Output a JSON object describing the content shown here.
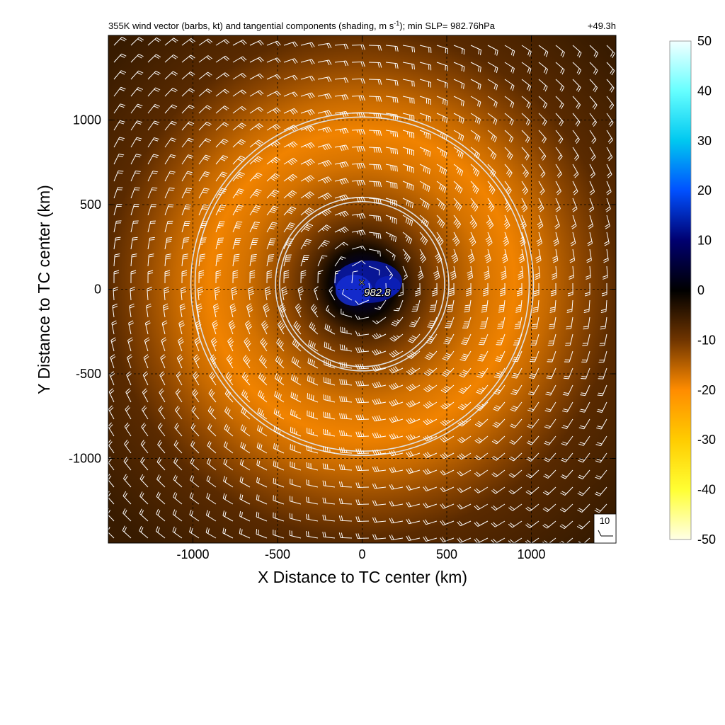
{
  "chart_data": {
    "type": "heatmap",
    "title": "355K wind vector (barbs, kt) and tangential components (shading, m s",
    "title_superscript": "-1",
    "title_suffix": "); min SLP= 982.76hPa",
    "forecast_time": "+49.3h",
    "xlabel": "X Distance to TC center (km)",
    "ylabel": "Y Distance to TC center (km)",
    "xlim": [
      -1500,
      1500
    ],
    "ylim": [
      -1500,
      1500
    ],
    "xticks": [
      -1000,
      -500,
      0,
      500,
      1000
    ],
    "yticks": [
      -1000,
      -500,
      0,
      500,
      1000
    ],
    "xtick_labels": [
      "-1000",
      "-500",
      "0",
      "500",
      "1000"
    ],
    "ytick_labels": [
      "-1000",
      "-500",
      "0",
      "500",
      "1000"
    ],
    "grid": "dashed",
    "center_marker": {
      "symbol": "×",
      "x": 0,
      "y": 30,
      "label": "982.8"
    },
    "range_rings_km": [
      500,
      1000
    ],
    "ring_center": [
      0,
      30
    ],
    "barb_reference": {
      "label": "10",
      "speed_kt": 10
    },
    "colorbar": {
      "ticks": [
        50,
        40,
        30,
        20,
        10,
        0,
        -10,
        -20,
        -30,
        -40,
        -50
      ],
      "tick_labels": [
        "50",
        "40",
        "30",
        "20",
        "10",
        "0",
        "-10",
        "-20",
        "-30",
        "-40",
        "-50"
      ],
      "range": [
        -50,
        50
      ],
      "stops": [
        {
          "value": 50,
          "color": "#f2ffff"
        },
        {
          "value": 40,
          "color": "#66ffff"
        },
        {
          "value": 30,
          "color": "#00c8f0"
        },
        {
          "value": 20,
          "color": "#0050ff"
        },
        {
          "value": 10,
          "color": "#000070"
        },
        {
          "value": 0,
          "color": "#000000"
        },
        {
          "value": -10,
          "color": "#703500"
        },
        {
          "value": -20,
          "color": "#ff8c00"
        },
        {
          "value": -30,
          "color": "#ffcc00"
        },
        {
          "value": -40,
          "color": "#ffff33"
        },
        {
          "value": -50,
          "color": "#ffffe6"
        }
      ]
    },
    "field_profile": {
      "radius_km": [
        0,
        100,
        200,
        300,
        450,
        600,
        700,
        900,
        1100,
        1300,
        1500,
        2000
      ],
      "tangential_ms": [
        7,
        4,
        -1,
        -7,
        -12,
        -15,
        -17,
        -19,
        -16,
        -12,
        -8,
        -5
      ]
    },
    "colors": {
      "ring": "#e0e0e0",
      "barb": "#ffffff",
      "grid": "#000000"
    }
  }
}
